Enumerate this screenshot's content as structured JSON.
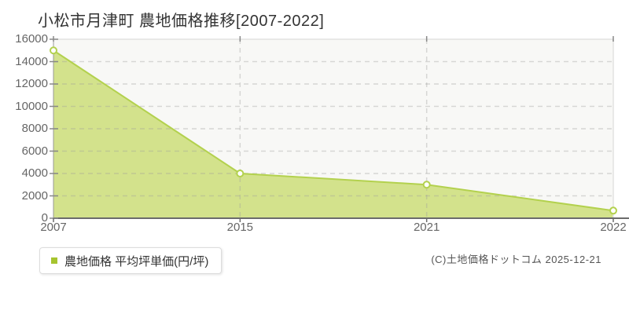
{
  "chart_data": {
    "type": "area",
    "title": "小松市月津町 農地価格推移[2007-2022]",
    "categories": [
      "2007",
      "2015",
      "2021",
      "2022"
    ],
    "series": [
      {
        "name": "農地価格 平均坪単価(円/坪)",
        "values": [
          15000,
          4000,
          3000,
          680
        ]
      }
    ],
    "xlabel": "",
    "ylabel": "",
    "ylim": [
      0,
      16000
    ],
    "y_tick_step": 2000,
    "y_tick_labels": [
      "0",
      "2000",
      "4000",
      "6000",
      "8000",
      "10000",
      "12000",
      "14000",
      "16000"
    ],
    "grid": "horizontal dashed lines + vertical dashed lines at inner category ticks",
    "legend_position": "bottom-left",
    "colors": {
      "area_fill": "#d3e28c",
      "line": "#b3d14e",
      "marker_fill": "#ffffff",
      "legend_marker": "#a6c42f",
      "grid": "#9e9e9e",
      "plot_bg": "#f8f8f6",
      "plot_border": "#e2e2e0",
      "y_axis": "#999999",
      "x_axis": "#6b6b6b",
      "tick": "#888888"
    }
  },
  "footer": {
    "copyright": "(C)土地価格ドットコム 2025-12-21"
  }
}
